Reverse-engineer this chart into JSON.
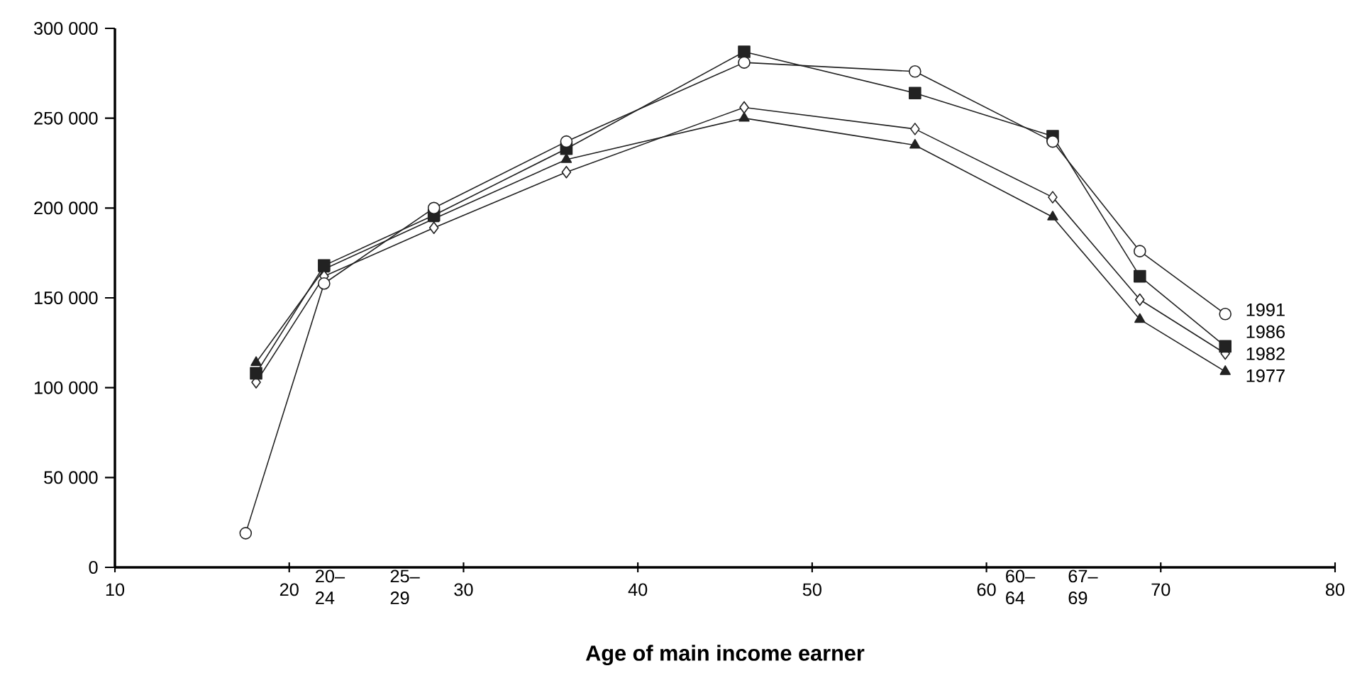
{
  "chart_data": {
    "type": "line",
    "xlabel": "**Age of main income earner**",
    "x": [
      18.1,
      22,
      28.3,
      35.9,
      46.1,
      55.9,
      63.8,
      68.8,
      73.7
    ],
    "series": [
      {
        "name": "1991",
        "color": "#222222",
        "marker": "circle",
        "x": [
          17.5,
          22,
          28.3,
          35.9,
          46.1,
          55.9,
          63.8,
          68.8,
          73.7
        ],
        "values": [
          19000,
          158000,
          200000,
          237000,
          281000,
          276000,
          237000,
          176000,
          141000
        ]
      },
      {
        "name": "1986",
        "color": "#222222",
        "marker": "square",
        "values": [
          108000,
          168000,
          196000,
          233000,
          287000,
          264000,
          240000,
          162000,
          123000
        ]
      },
      {
        "name": "1982",
        "color": "#222222",
        "marker": "diamond",
        "values": [
          103000,
          162000,
          189000,
          220000,
          256000,
          244000,
          206000,
          149000,
          119000
        ]
      },
      {
        "name": "1977",
        "color": "#222222",
        "marker": "triangle",
        "values": [
          114000,
          166000,
          194000,
          227000,
          250000,
          235000,
          195000,
          138000,
          109000
        ]
      }
    ],
    "xlim": [
      10,
      80
    ],
    "xticks": [
      10,
      20,
      30,
      40,
      50,
      60,
      70,
      80,
      {
        "value": 22.5,
        "label": "20–24"
      },
      {
        "value": 26.8,
        "label": "25–29"
      },
      {
        "value": 62.1,
        "label": "60–64"
      },
      {
        "value": 65.7,
        "label": "67–69"
      }
    ],
    "ylim": [
      0,
      300000
    ],
    "yticks": [
      {
        "value": 0,
        "label": "0"
      },
      {
        "value": 50000,
        "label": "50 000"
      },
      {
        "value": 100000,
        "label": "100 000"
      },
      {
        "value": 150000,
        "label": "150 000"
      },
      {
        "value": 200000,
        "label": "200 000"
      },
      {
        "value": 250000,
        "label": "250 000"
      },
      {
        "value": 300000,
        "label": "300 000"
      }
    ],
    "grid": false,
    "legend": false,
    "line_style": "solid"
  }
}
